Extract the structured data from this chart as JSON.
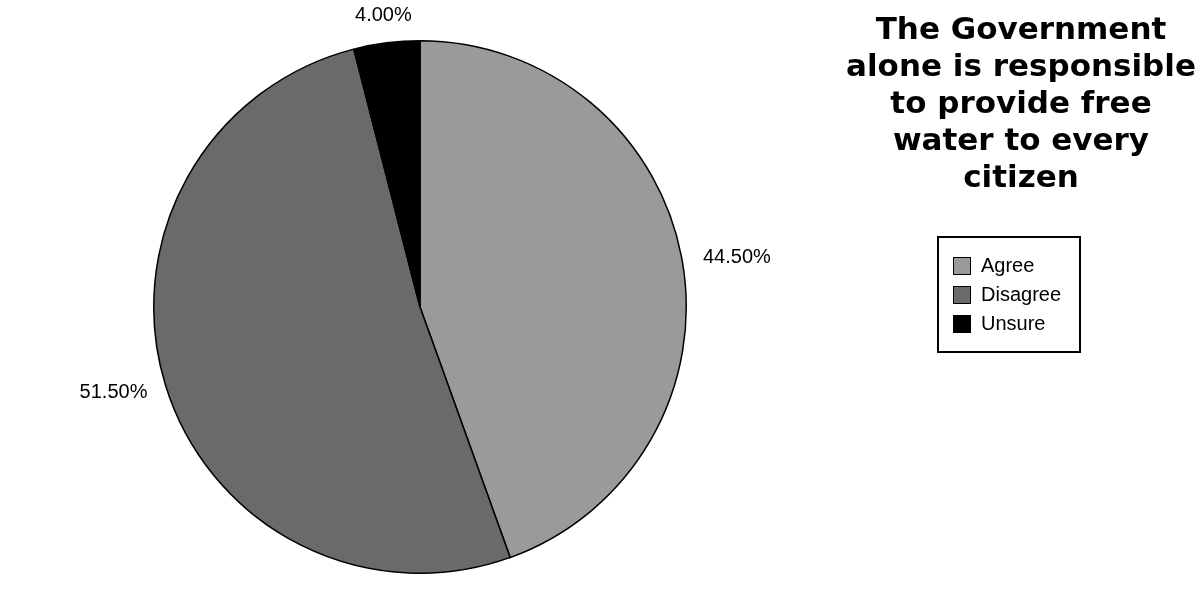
{
  "chart_data": {
    "type": "pie",
    "title": "The Government alone is responsible to provide free water to every citizen",
    "categories": [
      "Agree",
      "Disagree",
      "Unsure"
    ],
    "values": [
      44.5,
      51.5,
      4
    ],
    "value_labels": [
      "44.50%",
      "51.50%",
      "4.00%"
    ],
    "colors": [
      "#9a9a9a",
      "#6a6a6a",
      "#000000"
    ],
    "legend": "right"
  }
}
